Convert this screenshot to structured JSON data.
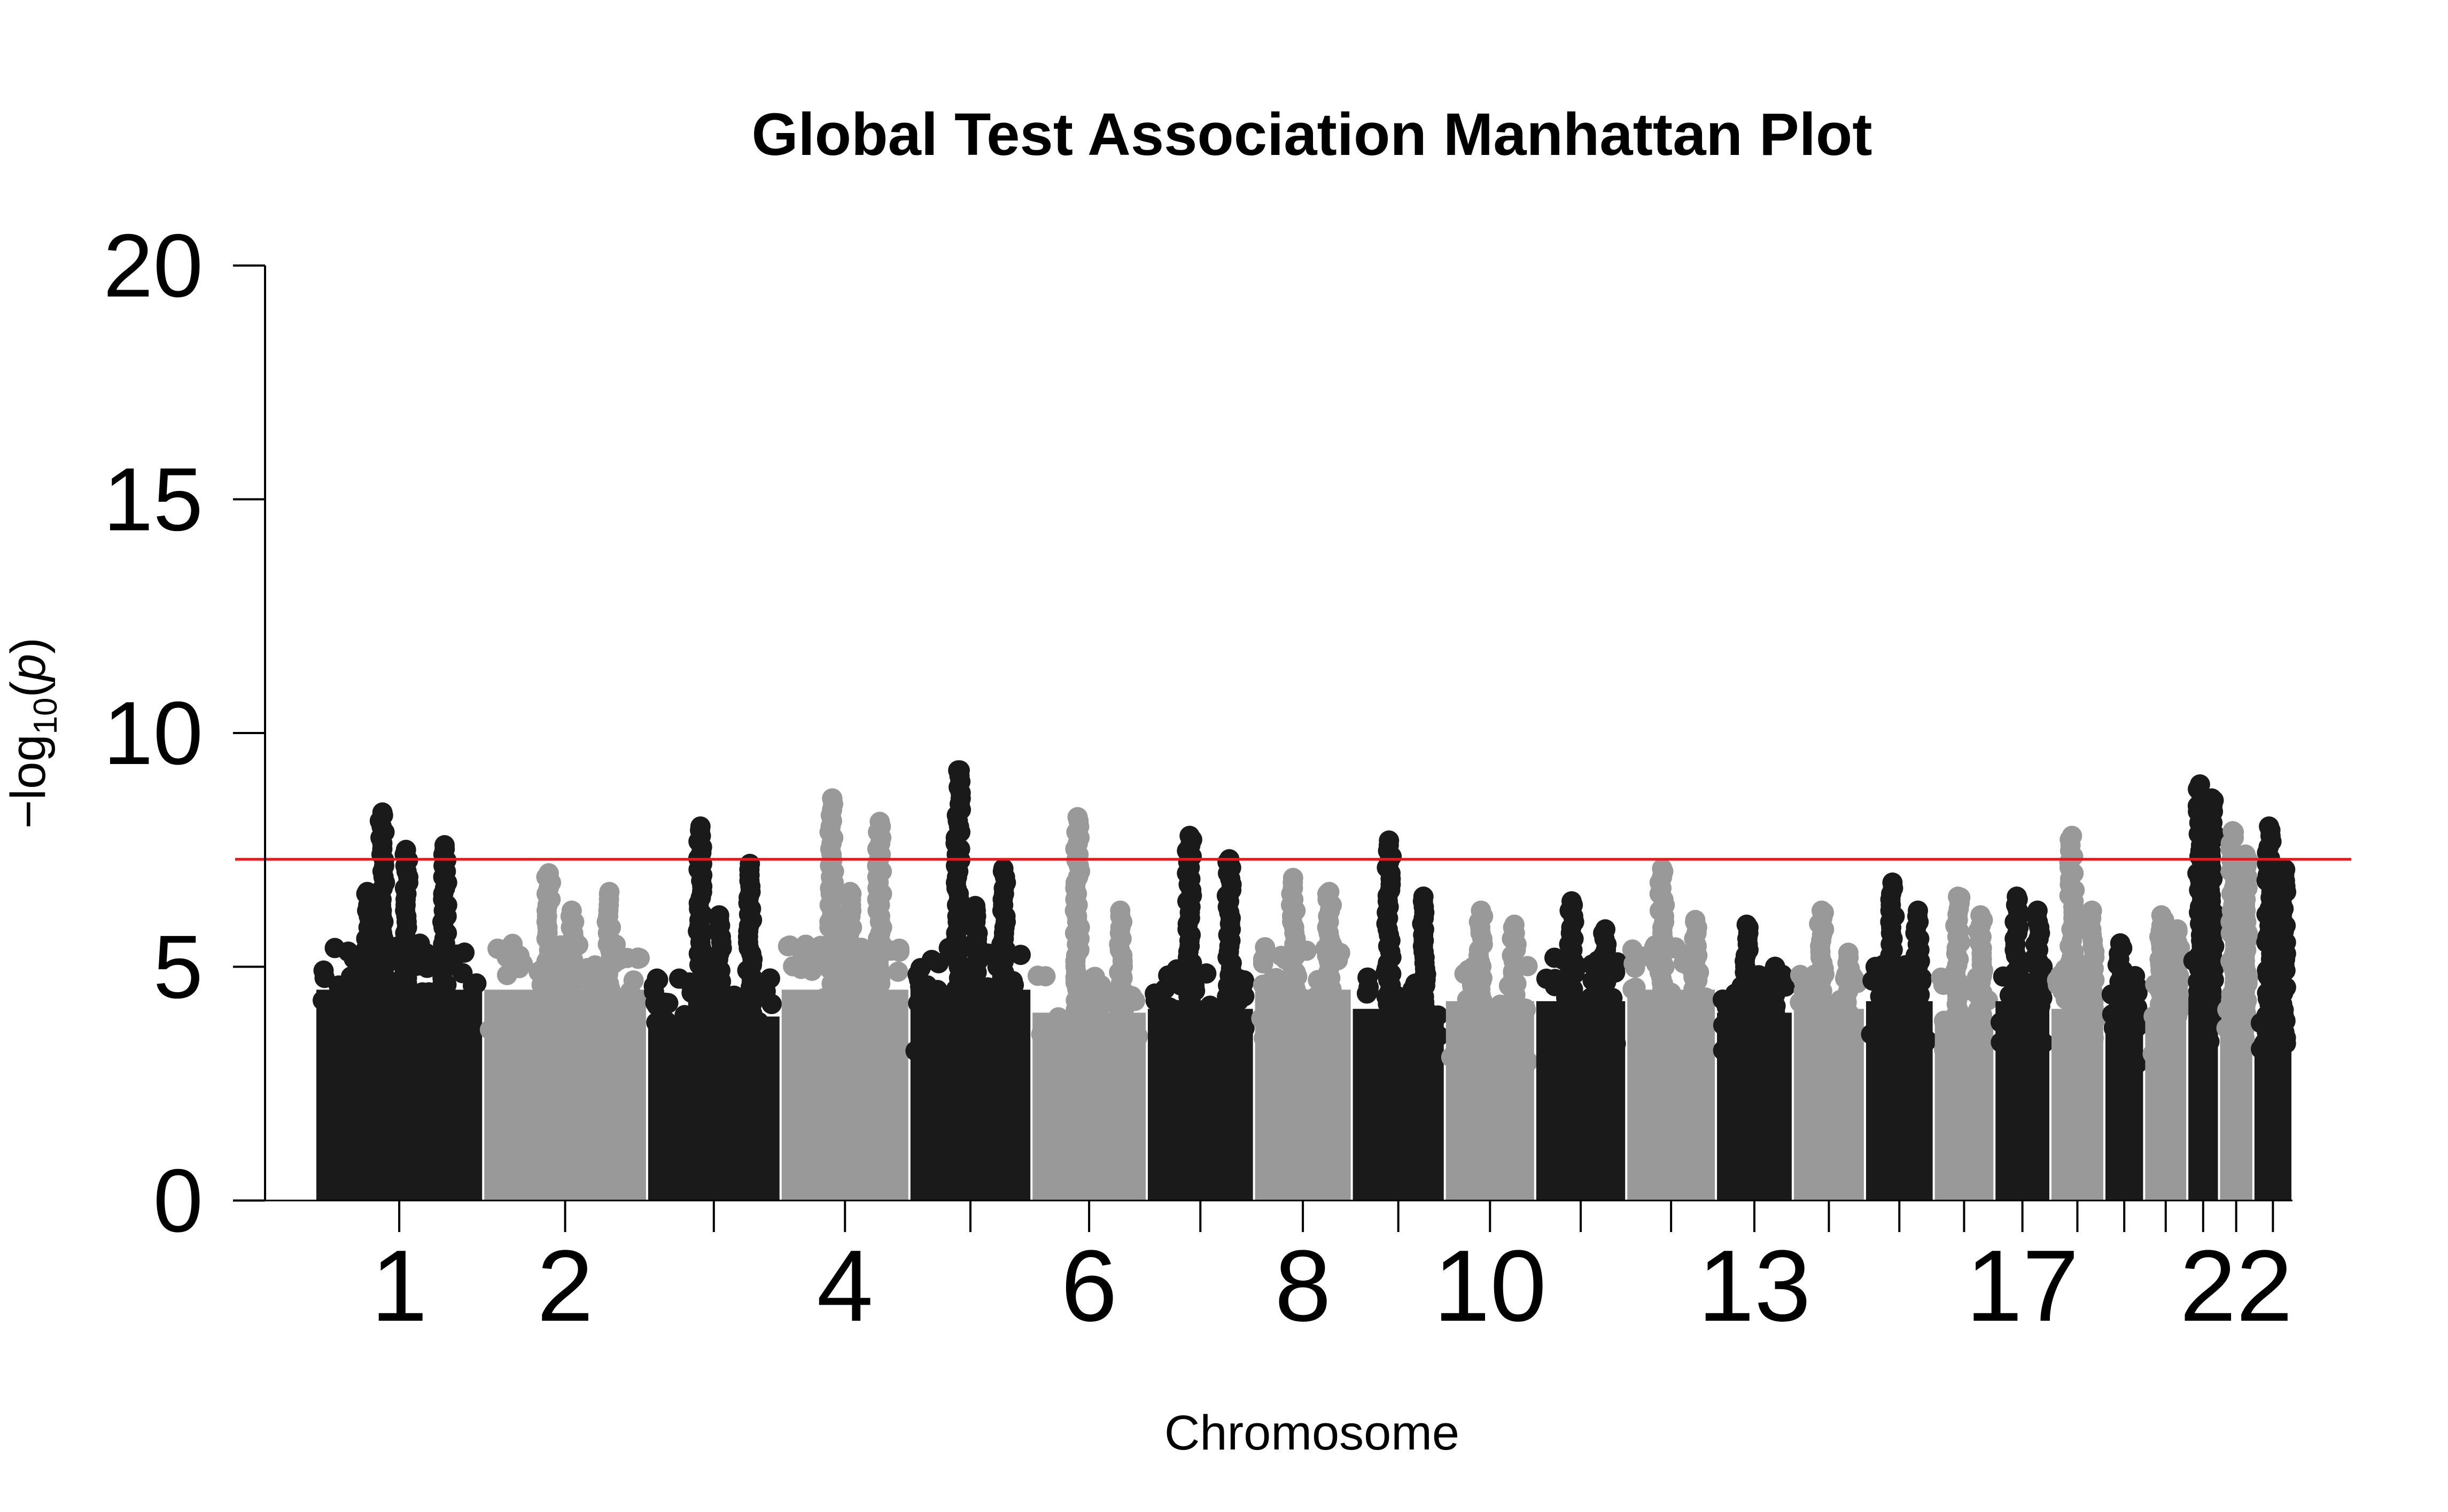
{
  "chart_data": {
    "type": "scatter",
    "subtype": "manhattan",
    "title": "Global Test Association Manhattan Plot",
    "xlabel": "Chromosome",
    "ylabel": {
      "prefix": "−log",
      "subscript": "10",
      "suffix_open": "(",
      "var": "p",
      "suffix_close": ")"
    },
    "ylim": [
      0,
      20
    ],
    "yticks": [
      "0",
      "5",
      "10",
      "15",
      "20"
    ],
    "ytick_values": [
      0,
      5,
      10,
      15,
      20
    ],
    "xtick_labels": [
      "1",
      "2",
      "4",
      "6",
      "8",
      "10",
      "13",
      "17",
      "22"
    ],
    "xtick_label_chromosomes": [
      1,
      2,
      4,
      6,
      8,
      10,
      13,
      17,
      22
    ],
    "significance_threshold": 7.3,
    "threshold_color": "#e31a1c",
    "colors": [
      "#1a1a1a",
      "#999999"
    ],
    "grid": false,
    "chromosomes": [
      {
        "chr": 1,
        "baseline_max": 5.5,
        "peaks": [
          8.3,
          7.6,
          7.5,
          6.6
        ]
      },
      {
        "chr": 2,
        "baseline_max": 5.5,
        "peaks": [
          7.0,
          6.6,
          6.2
        ]
      },
      {
        "chr": 3,
        "baseline_max": 4.8,
        "peaks": [
          8.0,
          7.2,
          6.1
        ]
      },
      {
        "chr": 4,
        "baseline_max": 5.5,
        "peaks": [
          8.6,
          8.1,
          6.6
        ]
      },
      {
        "chr": 5,
        "baseline_max": 5.5,
        "peaks": [
          9.2,
          7.1,
          6.3
        ]
      },
      {
        "chr": 6,
        "baseline_max": 4.9,
        "peaks": [
          8.2,
          6.2
        ]
      },
      {
        "chr": 7,
        "baseline_max": 5.0,
        "peaks": [
          7.8,
          7.3
        ]
      },
      {
        "chr": 8,
        "baseline_max": 5.5,
        "peaks": [
          6.9,
          6.6
        ]
      },
      {
        "chr": 9,
        "baseline_max": 5.0,
        "peaks": [
          7.7,
          6.5
        ]
      },
      {
        "chr": 10,
        "baseline_max": 5.2,
        "peaks": [
          6.2,
          5.9
        ]
      },
      {
        "chr": 11,
        "baseline_max": 5.2,
        "peaks": [
          6.4,
          5.8
        ]
      },
      {
        "chr": 12,
        "baseline_max": 5.5,
        "peaks": [
          7.1,
          6.0
        ]
      },
      {
        "chr": 13,
        "baseline_max": 4.9,
        "peaks": [
          5.9,
          5.0
        ]
      },
      {
        "chr": 14,
        "baseline_max": 5.0,
        "peaks": [
          6.2,
          5.3
        ]
      },
      {
        "chr": 15,
        "baseline_max": 5.2,
        "peaks": [
          6.8,
          6.2
        ]
      },
      {
        "chr": 16,
        "baseline_max": 4.8,
        "peaks": [
          6.5,
          6.1
        ]
      },
      {
        "chr": 17,
        "baseline_max": 5.2,
        "peaks": [
          6.5,
          6.2
        ]
      },
      {
        "chr": 18,
        "baseline_max": 5.0,
        "peaks": [
          7.8,
          6.2
        ]
      },
      {
        "chr": 19,
        "baseline_max": 4.5,
        "peaks": [
          5.5,
          4.8
        ]
      },
      {
        "chr": 20,
        "baseline_max": 4.8,
        "peaks": [
          6.1,
          5.8
        ]
      },
      {
        "chr": 21,
        "baseline_max": 5.3,
        "peaks": [
          8.9,
          8.6,
          7.7
        ]
      },
      {
        "chr": 22,
        "baseline_max": 4.6,
        "peaks": [
          7.9,
          7.4,
          6.5
        ]
      },
      {
        "chr": 23,
        "baseline_max": 4.2,
        "peaks": [
          8.0,
          7.1,
          5.7
        ]
      }
    ]
  }
}
